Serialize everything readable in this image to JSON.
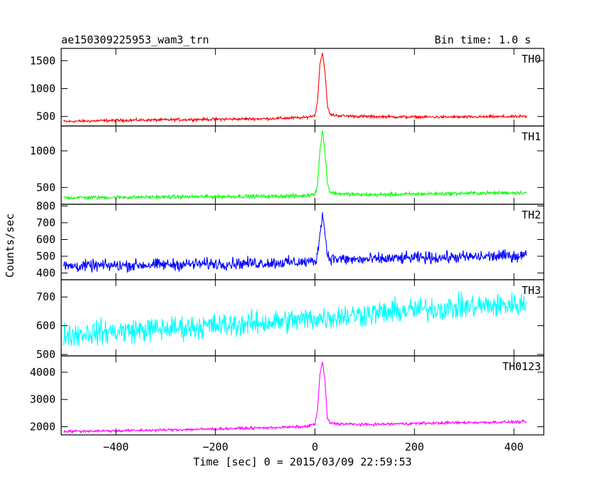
{
  "chart_data": {
    "type": "line",
    "title": "ae150309225953_wam3_trn",
    "bin_time_label": "Bin time: 1.0 s",
    "xlabel": "Time [sec] 0 = 2015/03/09 22:59:53",
    "ylabel": "Counts/sec",
    "xlim": [
      -510,
      460
    ],
    "x_ticks": [
      -400,
      -200,
      0,
      200,
      400
    ],
    "x_tick_labels": [
      "−400",
      "−200",
      "0",
      "200",
      "400"
    ],
    "grid": false,
    "legend": "none (panel labels top-right)",
    "panels": [
      {
        "name": "TH0",
        "color": "#ff0000",
        "ylim": [
          330,
          1720
        ],
        "y_ticks": [
          500,
          1000,
          1500
        ],
        "y_tick_labels": [
          "500",
          "1000",
          "1500"
        ],
        "x": [
          -505,
          -400,
          -300,
          -200,
          -100,
          -20,
          0,
          5,
          10,
          15,
          20,
          25,
          30,
          40,
          60,
          100,
          200,
          300,
          425
        ],
        "y": [
          410,
          430,
          440,
          450,
          460,
          480,
          520,
          760,
          1450,
          1640,
          1320,
          700,
          540,
          520,
          510,
          500,
          490,
          490,
          500
        ],
        "noise": 18
      },
      {
        "name": "TH1",
        "color": "#00ff00",
        "ylim": [
          270,
          1340
        ],
        "y_ticks": [
          500,
          1000
        ],
        "y_tick_labels": [
          "500",
          "1000"
        ],
        "x": [
          -505,
          -400,
          -300,
          -200,
          -100,
          -20,
          0,
          5,
          10,
          15,
          20,
          25,
          30,
          40,
          60,
          100,
          200,
          300,
          425
        ],
        "y": [
          360,
          365,
          370,
          375,
          380,
          385,
          420,
          520,
          1000,
          1280,
          1000,
          580,
          440,
          420,
          410,
          400,
          410,
          420,
          430
        ],
        "noise": 18
      },
      {
        "name": "TH2",
        "color": "#0000ff",
        "ylim": [
          360,
          810
        ],
        "y_ticks": [
          400,
          500,
          600,
          700,
          800
        ],
        "y_tick_labels": [
          "400",
          "500",
          "600",
          "700",
          "800"
        ],
        "x": [
          -505,
          -400,
          -300,
          -200,
          -100,
          -20,
          0,
          5,
          10,
          15,
          20,
          25,
          30,
          40,
          60,
          100,
          200,
          300,
          425
        ],
        "y": [
          440,
          445,
          450,
          455,
          460,
          465,
          470,
          500,
          640,
          760,
          640,
          510,
          490,
          485,
          480,
          480,
          490,
          495,
          505
        ],
        "noise": 25
      },
      {
        "name": "TH3",
        "color": "#00ffff",
        "ylim": [
          495,
          760
        ],
        "y_ticks": [
          500,
          600,
          700
        ],
        "y_tick_labels": [
          "500",
          "600",
          "700"
        ],
        "x": [
          -505,
          -400,
          -300,
          -200,
          -100,
          0,
          100,
          200,
          300,
          425
        ],
        "y": [
          570,
          580,
          590,
          600,
          610,
          625,
          640,
          655,
          665,
          675
        ],
        "noise": 30
      },
      {
        "name": "TH0123",
        "color": "#ff00ff",
        "ylim": [
          1700,
          4600
        ],
        "y_ticks": [
          2000,
          3000,
          4000
        ],
        "y_tick_labels": [
          "2000",
          "3000",
          "4000"
        ],
        "x": [
          -505,
          -400,
          -300,
          -200,
          -100,
          -20,
          0,
          5,
          10,
          15,
          20,
          25,
          30,
          40,
          60,
          100,
          200,
          300,
          425
        ],
        "y": [
          1830,
          1850,
          1880,
          1920,
          1960,
          2000,
          2100,
          2600,
          3900,
          4400,
          3700,
          2300,
          2150,
          2120,
          2100,
          2080,
          2120,
          2150,
          2180
        ],
        "noise": 35
      }
    ]
  }
}
